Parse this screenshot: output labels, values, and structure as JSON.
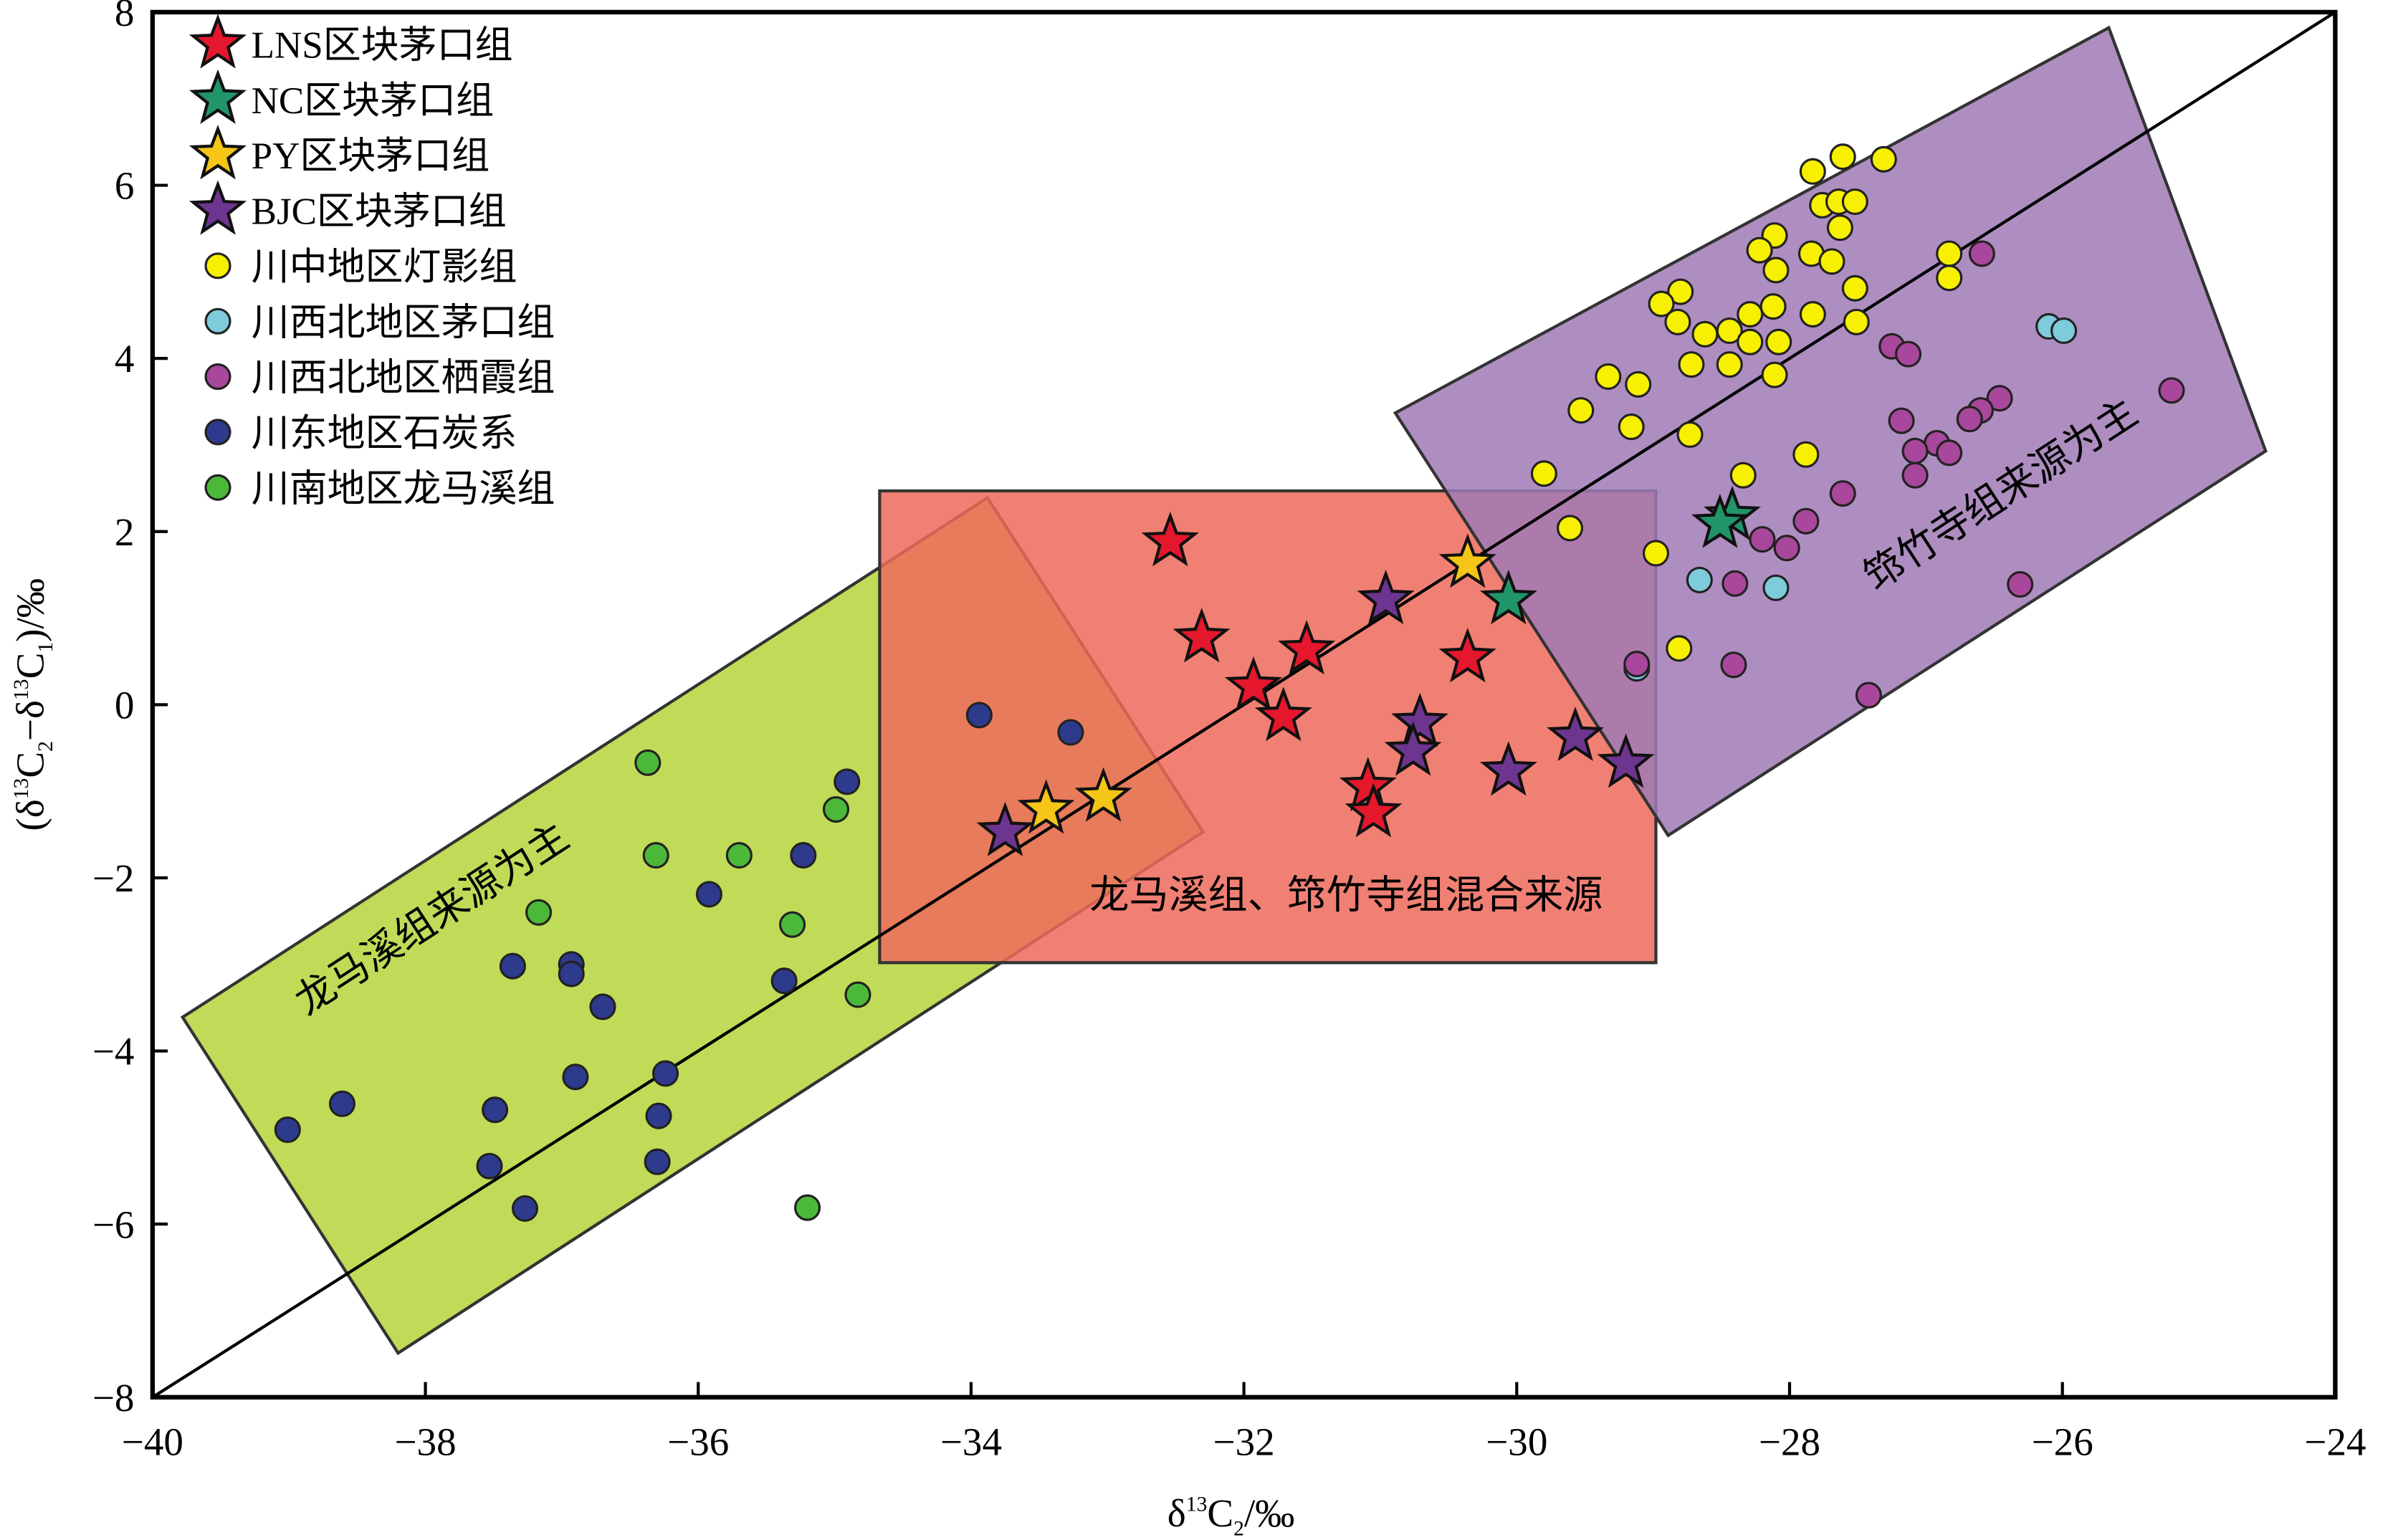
{
  "chart_data": {
    "type": "scatter",
    "xlabel": "δ13C2/‰",
    "ylabel": "(δ13C2−δ13C1)/‰",
    "xlabel_parts": {
      "a": "δ",
      "sup": "13",
      "b": "C",
      "sub": "2",
      "c": "/‰"
    },
    "ylabel_parts": {
      "open": "(δ",
      "sup1": "13",
      "c1": "C",
      "sub1": "2",
      "mid": "−δ",
      "sup2": "13",
      "c2": "C",
      "sub2": "1",
      "close": ")/‰"
    },
    "xlim": [
      -40,
      -24
    ],
    "ylim": [
      -8,
      8
    ],
    "xticks": [
      -40,
      -38,
      -36,
      -34,
      -32,
      -30,
      -28,
      -26,
      -24
    ],
    "yticks": [
      -8,
      -6,
      -4,
      -2,
      0,
      2,
      4,
      6,
      8
    ],
    "xtick_labels": [
      "−40",
      "−38",
      "−36",
      "−34",
      "−32",
      "−30",
      "−28",
      "−26",
      "−24"
    ],
    "ytick_labels": [
      "−8",
      "−6",
      "−4",
      "−2",
      "0",
      "2",
      "4",
      "6",
      "8"
    ],
    "legend_position": "top-left",
    "reference_line": {
      "from": [
        -40,
        -8
      ],
      "to": [
        -24,
        8
      ]
    },
    "regions": [
      {
        "name": "龙马溪组来源为主",
        "color": "#b5d53a",
        "polygon": [
          [
            -39.78,
            -3.61
          ],
          [
            -33.88,
            2.39
          ],
          [
            -32.3,
            -1.47
          ],
          [
            -38.2,
            -7.49
          ]
        ],
        "label_at": [
          -37.9,
          -2.6
        ],
        "angle": -33
      },
      {
        "name": "龙马溪组、筇竹寺组混合来源",
        "color": "#ee6a5c",
        "polygon": [
          [
            -34.67,
            2.47
          ],
          [
            -28.98,
            2.47
          ],
          [
            -28.98,
            -2.98
          ],
          [
            -34.67,
            -2.98
          ]
        ],
        "label_at": [
          -31.25,
          -2.35
        ],
        "angle": 0
      },
      {
        "name": "筇竹寺组来源为主",
        "color": "#a07ab5",
        "polygon": [
          [
            -30.89,
            3.37
          ],
          [
            -25.66,
            7.82
          ],
          [
            -24.51,
            2.93
          ],
          [
            -28.89,
            -1.51
          ]
        ],
        "label_at": [
          -26.4,
          2.3
        ],
        "angle": -33
      }
    ],
    "series": [
      {
        "name": "LNS区块茅口组",
        "marker": "star",
        "color": "#e5172c",
        "points": [
          [
            -32.54,
            1.88
          ],
          [
            -32.31,
            0.77
          ],
          [
            -31.54,
            0.63
          ],
          [
            -31.93,
            0.21
          ],
          [
            -31.71,
            -0.14
          ],
          [
            -30.36,
            0.54
          ],
          [
            -31.09,
            -0.95
          ],
          [
            -31.05,
            -1.25
          ]
        ]
      },
      {
        "name": "NC区块茅口组",
        "marker": "star",
        "color": "#22946a",
        "points": [
          [
            -28.42,
            2.18
          ],
          [
            -28.51,
            2.09
          ],
          [
            -30.06,
            1.21
          ]
        ]
      },
      {
        "name": "PY区块茅口组",
        "marker": "star",
        "color": "#f5c518",
        "points": [
          [
            -30.36,
            1.63
          ],
          [
            -33.03,
            -1.07
          ],
          [
            -33.45,
            -1.21
          ]
        ]
      },
      {
        "name": "BJC区块茅口组",
        "marker": "star",
        "color": "#6e3590",
        "points": [
          [
            -30.96,
            1.21
          ],
          [
            -30.71,
            -0.21
          ],
          [
            -30.76,
            -0.54
          ],
          [
            -30.06,
            -0.77
          ],
          [
            -29.57,
            -0.37
          ],
          [
            -29.2,
            -0.68
          ],
          [
            -33.75,
            -1.47
          ]
        ]
      },
      {
        "name": "川中地区灯影组",
        "marker": "circle",
        "color": "#f7f000",
        "points": [
          [
            -27.61,
            6.33
          ],
          [
            -27.31,
            6.3
          ],
          [
            -27.83,
            6.16
          ],
          [
            -27.76,
            5.77
          ],
          [
            -27.64,
            5.81
          ],
          [
            -27.52,
            5.81
          ],
          [
            -26.83,
            5.21
          ],
          [
            -28.11,
            5.42
          ],
          [
            -27.84,
            5.21
          ],
          [
            -27.63,
            5.51
          ],
          [
            -28.22,
            5.25
          ],
          [
            -27.69,
            5.12
          ],
          [
            -28.1,
            5.02
          ],
          [
            -26.83,
            4.93
          ],
          [
            -27.52,
            4.81
          ],
          [
            -28.8,
            4.77
          ],
          [
            -28.94,
            4.63
          ],
          [
            -28.82,
            4.42
          ],
          [
            -28.12,
            4.6
          ],
          [
            -28.29,
            4.51
          ],
          [
            -27.83,
            4.51
          ],
          [
            -27.51,
            4.42
          ],
          [
            -28.44,
            4.32
          ],
          [
            -28.62,
            4.28
          ],
          [
            -28.29,
            4.19
          ],
          [
            -28.08,
            4.19
          ],
          [
            -28.72,
            3.93
          ],
          [
            -28.44,
            3.93
          ],
          [
            -29.33,
            3.79
          ],
          [
            -29.11,
            3.7
          ],
          [
            -28.11,
            3.81
          ],
          [
            -29.53,
            3.4
          ],
          [
            -29.16,
            3.21
          ],
          [
            -28.73,
            3.12
          ],
          [
            -27.88,
            2.89
          ],
          [
            -28.34,
            2.65
          ],
          [
            -29.8,
            2.67
          ],
          [
            -29.61,
            2.04
          ],
          [
            -28.98,
            1.75
          ],
          [
            -28.81,
            0.65
          ]
        ]
      },
      {
        "name": "川西北地区茅口组",
        "marker": "circle",
        "color": "#7ecbdc",
        "points": [
          [
            -26.1,
            4.37
          ],
          [
            -25.99,
            4.32
          ],
          [
            -28.66,
            1.44
          ],
          [
            -28.1,
            1.35
          ],
          [
            -29.12,
            0.42
          ]
        ]
      },
      {
        "name": "川西北地区栖霞组",
        "marker": "circle",
        "color": "#a8479b",
        "points": [
          [
            -26.59,
            5.21
          ],
          [
            -27.25,
            4.14
          ],
          [
            -27.13,
            4.05
          ],
          [
            -25.2,
            3.63
          ],
          [
            -26.46,
            3.54
          ],
          [
            -26.6,
            3.4
          ],
          [
            -26.68,
            3.3
          ],
          [
            -27.18,
            3.28
          ],
          [
            -26.92,
            3.02
          ],
          [
            -26.83,
            2.91
          ],
          [
            -27.08,
            2.93
          ],
          [
            -27.08,
            2.65
          ],
          [
            -27.61,
            2.44
          ],
          [
            -27.88,
            2.12
          ],
          [
            -28.2,
            1.91
          ],
          [
            -28.02,
            1.81
          ],
          [
            -28.4,
            1.4
          ],
          [
            -26.31,
            1.39
          ],
          [
            -28.41,
            0.46
          ],
          [
            -29.12,
            0.47
          ],
          [
            -27.42,
            0.11
          ]
        ]
      },
      {
        "name": "川东地区石炭系",
        "marker": "circle",
        "color": "#2e3a8c",
        "points": [
          [
            -33.94,
            -0.12
          ],
          [
            -33.27,
            -0.32
          ],
          [
            -34.91,
            -0.89
          ],
          [
            -35.23,
            -1.74
          ],
          [
            -35.92,
            -2.19
          ],
          [
            -35.37,
            -3.19
          ],
          [
            -37.36,
            -3.02
          ],
          [
            -36.93,
            -3.0
          ],
          [
            -36.93,
            -3.11
          ],
          [
            -36.7,
            -3.49
          ],
          [
            -36.9,
            -4.3
          ],
          [
            -36.24,
            -4.26
          ],
          [
            -36.29,
            -4.75
          ],
          [
            -37.49,
            -4.68
          ],
          [
            -38.61,
            -4.61
          ],
          [
            -39.01,
            -4.91
          ],
          [
            -37.53,
            -5.33
          ],
          [
            -36.3,
            -5.28
          ],
          [
            -37.27,
            -5.82
          ]
        ]
      },
      {
        "name": "川南地区龙马溪组",
        "marker": "circle",
        "color": "#4cb83a",
        "points": [
          [
            -36.37,
            -0.67
          ],
          [
            -36.31,
            -1.74
          ],
          [
            -35.7,
            -1.74
          ],
          [
            -34.99,
            -1.21
          ],
          [
            -37.17,
            -2.4
          ],
          [
            -35.31,
            -2.54
          ],
          [
            -34.83,
            -3.35
          ],
          [
            -35.2,
            -5.81
          ]
        ]
      }
    ]
  }
}
